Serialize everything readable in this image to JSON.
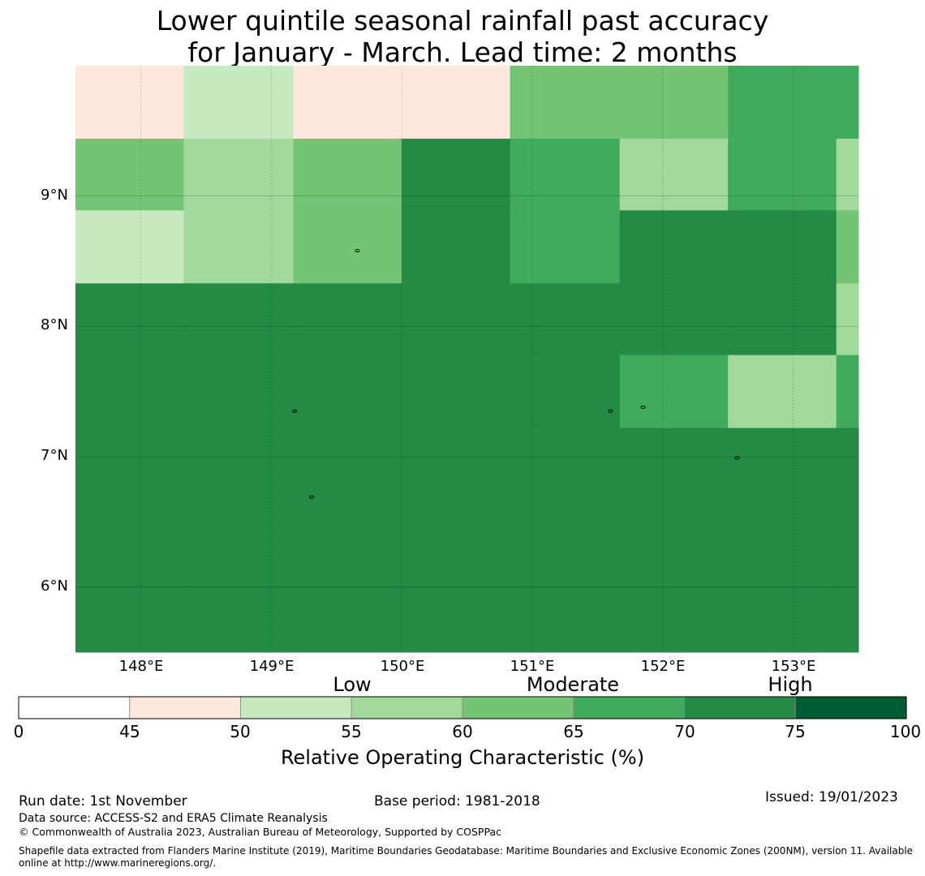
{
  "title": {
    "line1": "Lower quintile seasonal rainfall past accuracy",
    "line2": "for January - March. Lead time: 2 months"
  },
  "map": {
    "lat_labels": [
      "9°N",
      "8°N",
      "7°N",
      "6°N"
    ],
    "lon_labels": [
      "148°E",
      "149°E",
      "150°E",
      "151°E",
      "152°E",
      "153°E"
    ],
    "extent": {
      "lon_min": 147.5,
      "lon_max": 153.5,
      "lat_min": 5.5,
      "lat_max": 10.0
    },
    "grid_lons": [
      148,
      149,
      150,
      151,
      152,
      153
    ],
    "grid_lats": [
      9,
      8,
      7,
      6
    ],
    "col_edges_lon": [
      147.5,
      148.33,
      149.17,
      150.0,
      150.83,
      151.67,
      152.5,
      153.33,
      153.5
    ],
    "row_edges_lat": [
      10.0,
      9.44,
      8.89,
      8.33,
      7.78,
      7.22,
      5.5
    ],
    "cell_bins": [
      [
        1,
        2,
        1,
        1,
        4,
        4,
        5,
        5
      ],
      [
        4,
        3,
        4,
        6,
        5,
        3,
        5,
        3
      ],
      [
        2,
        3,
        4,
        6,
        5,
        6,
        6,
        4
      ],
      [
        6,
        6,
        6,
        6,
        6,
        6,
        6,
        3
      ],
      [
        6,
        6,
        6,
        6,
        6,
        5,
        3,
        5
      ],
      [
        6,
        6,
        6,
        6,
        6,
        6,
        6,
        6
      ]
    ],
    "islands": [
      {
        "lon": 149.66,
        "lat": 8.58
      },
      {
        "lon": 149.18,
        "lat": 7.35
      },
      {
        "lon": 149.31,
        "lat": 6.69
      },
      {
        "lon": 151.6,
        "lat": 7.35
      },
      {
        "lon": 151.85,
        "lat": 7.38
      },
      {
        "lon": 152.57,
        "lat": 6.99
      }
    ]
  },
  "colorbar": {
    "categories": [
      "Low",
      "Moderate",
      "High"
    ],
    "ticks": [
      "0",
      "45",
      "50",
      "55",
      "60",
      "65",
      "70",
      "75",
      "100"
    ],
    "colors": [
      "#ffffff",
      "#fee8de",
      "#c7e9c0",
      "#a1d99b",
      "#74c476",
      "#41ab5d",
      "#238b45",
      "#005a32"
    ],
    "label": "Relative Operating Characteristic (%)"
  },
  "footer": {
    "run_date": "Run date: 1st November",
    "base_period": "Base period: 1981-2018",
    "issued": "Issued: 19/01/2023",
    "data_source": "Data source: ACCESS-S2 and ERA5 Climate Reanalysis",
    "copyright": "© Commonwealth of Australia 2023, Australian Bureau of Meteorology, Supported by COSPPac",
    "shapefile": "Shapefile data extracted from Flanders Marine Institute (2019), Maritime Boundaries Geodatabase: Maritime Boundaries and Exclusive Economic Zones (200NM), version 11. Available online at http://www.marineregions.org/."
  }
}
